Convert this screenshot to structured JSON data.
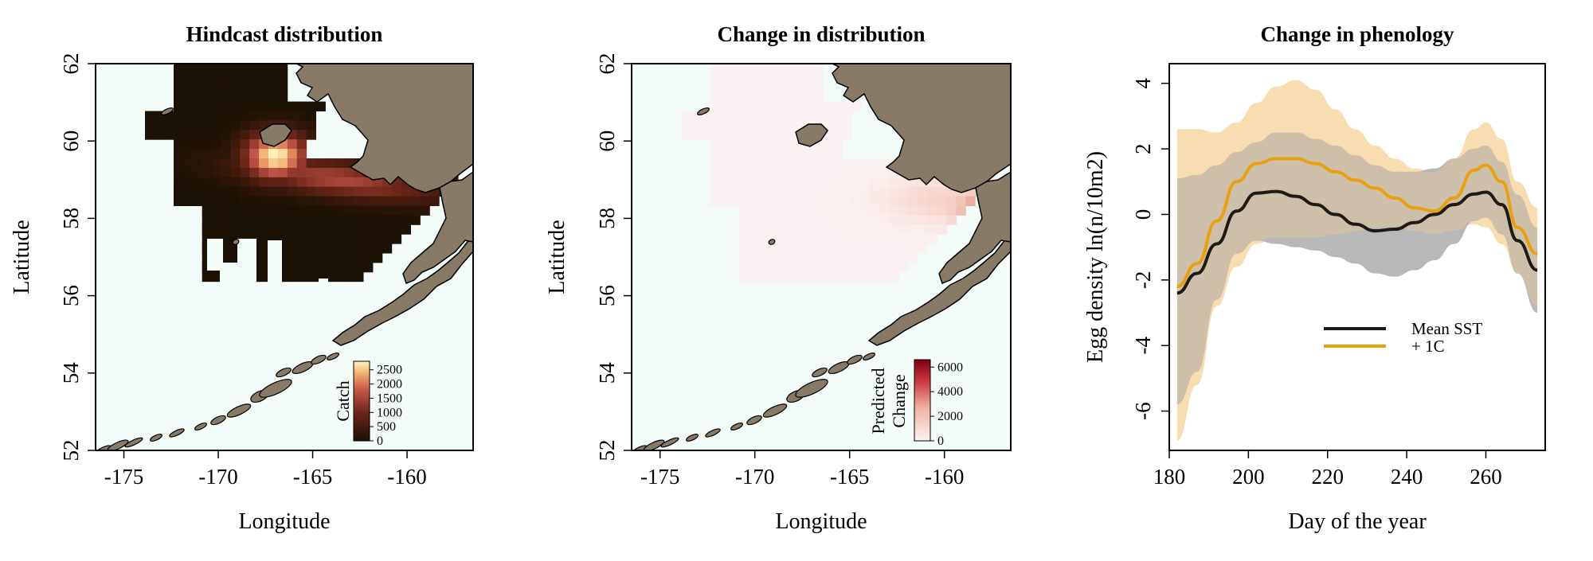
{
  "charts": [
    {
      "type": "heatmap",
      "title": "Hindcast distribution",
      "xlabel": "Longitude",
      "ylabel": "Latitude",
      "xlim": [
        -176.5,
        -156.5
      ],
      "ylim": [
        52,
        62
      ],
      "xticks": [
        -175,
        -170,
        -165,
        -160
      ],
      "yticks": [
        52,
        54,
        56,
        58,
        60,
        62
      ],
      "colorbar": {
        "label": "Catch",
        "ticks": [
          0,
          500,
          1000,
          1500,
          2000,
          2500
        ],
        "range": [
          0,
          2800
        ]
      },
      "colors": {
        "low": "#1b1205",
        "mid": "#b53b3b",
        "high": "#fff7c0",
        "ocean": "#f4fcf9",
        "land": "#877a66"
      }
    },
    {
      "type": "heatmap",
      "title": "Change in distribution",
      "xlabel": "Longitude",
      "ylabel": "Latitude",
      "xlim": [
        -176.5,
        -156.5
      ],
      "ylim": [
        52,
        62
      ],
      "xticks": [
        -175,
        -170,
        -165,
        -160
      ],
      "yticks": [
        52,
        54,
        56,
        58,
        60,
        62
      ],
      "colorbar": {
        "label_line1": "Predicted",
        "label_line2": "Change",
        "ticks": [
          0,
          2000,
          4000,
          6000
        ],
        "range": [
          0,
          6600
        ]
      },
      "colors": {
        "low": "#fbf3f3",
        "high": "#7a0015",
        "ocean": "#f4fcf9",
        "land": "#877a66"
      }
    },
    {
      "type": "line",
      "title": "Change in phenology",
      "xlabel": "Day of the year",
      "ylabel": "Egg density ln(n/10m2)",
      "xlim": [
        180,
        275
      ],
      "ylim": [
        -7.2,
        4.6
      ],
      "xticks": [
        180,
        200,
        220,
        240,
        260
      ],
      "yticks": [
        -6,
        -4,
        -2,
        0,
        2,
        4
      ],
      "x": [
        182,
        187,
        192,
        197,
        202,
        207,
        212,
        217,
        222,
        227,
        232,
        237,
        242,
        247,
        252,
        257,
        260,
        264,
        268,
        273
      ],
      "series": [
        {
          "name": "Mean SST",
          "color": "#1f1a14",
          "band_color": "#b8b8b8",
          "values": [
            -2.4,
            -1.8,
            -0.9,
            0.1,
            0.65,
            0.7,
            0.55,
            0.3,
            0.0,
            -0.3,
            -0.5,
            -0.45,
            -0.25,
            0.0,
            0.3,
            0.62,
            0.68,
            0.3,
            -0.8,
            -1.7
          ],
          "lower": [
            -5.8,
            -4.8,
            -2.6,
            -1.2,
            -0.8,
            -0.9,
            -1.0,
            -1.1,
            -1.3,
            -1.5,
            -1.8,
            -1.9,
            -1.7,
            -1.4,
            -0.9,
            -0.2,
            -0.1,
            -0.6,
            -1.8,
            -3.0
          ],
          "upper": [
            1.1,
            1.2,
            1.5,
            1.9,
            2.2,
            2.5,
            2.5,
            2.3,
            2.1,
            1.8,
            1.5,
            1.3,
            1.3,
            1.4,
            1.7,
            2.0,
            2.1,
            1.6,
            0.6,
            -0.4
          ]
        },
        {
          "name": "+ 1C",
          "color": "#e8a010",
          "band_color": "#f7ddb0",
          "values": [
            -2.2,
            -1.5,
            -0.2,
            1.0,
            1.55,
            1.7,
            1.7,
            1.55,
            1.3,
            1.05,
            0.8,
            0.5,
            0.2,
            0.1,
            0.5,
            1.35,
            1.5,
            1.0,
            -0.4,
            -1.2
          ],
          "lower": [
            -6.9,
            -5.2,
            -2.8,
            -1.6,
            -0.9,
            -0.7,
            -0.7,
            -0.7,
            -0.6,
            -0.5,
            -0.4,
            -0.4,
            -0.5,
            -0.6,
            -0.5,
            -0.3,
            -0.4,
            -0.9,
            -1.8,
            -2.8
          ],
          "upper": [
            2.6,
            2.6,
            2.5,
            2.8,
            3.4,
            3.9,
            4.1,
            3.8,
            3.2,
            2.6,
            2.1,
            1.7,
            1.4,
            1.3,
            1.7,
            2.6,
            2.8,
            2.3,
            1.0,
            0.2
          ]
        }
      ]
    }
  ]
}
